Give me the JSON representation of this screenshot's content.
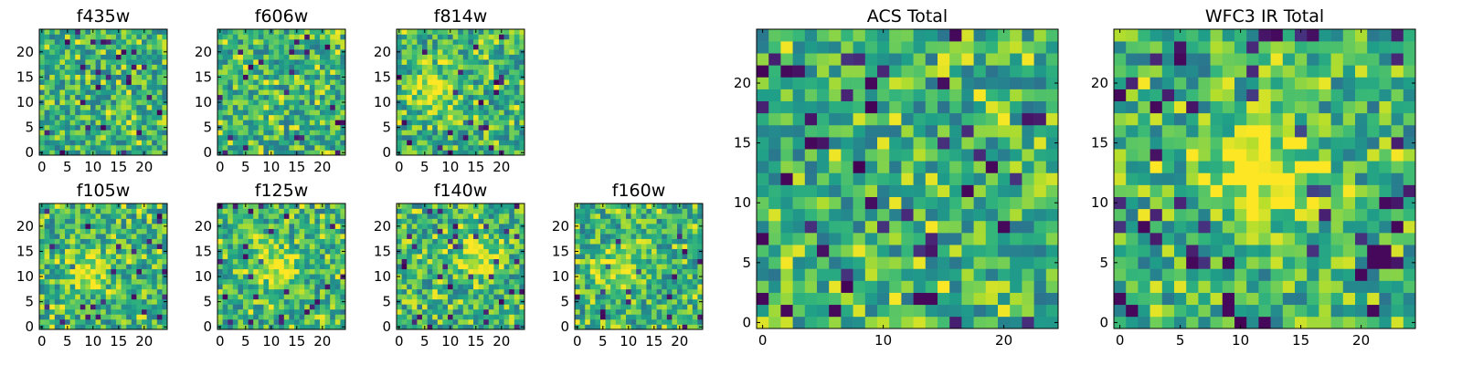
{
  "chart_data": [
    {
      "type": "heatmap",
      "title": "f435w",
      "grid_size": 25,
      "colormap": "viridis",
      "x_ticks": [
        0,
        5,
        10,
        15,
        20
      ],
      "y_ticks": [
        0,
        5,
        10,
        15,
        20
      ],
      "xlim": [
        -0.5,
        24.5
      ],
      "ylim": [
        -0.5,
        24.5
      ],
      "value_range": [
        0,
        1
      ],
      "seed": 101,
      "hotspots": []
    },
    {
      "type": "heatmap",
      "title": "f606w",
      "grid_size": 25,
      "colormap": "viridis",
      "x_ticks": [
        0,
        5,
        10,
        15,
        20
      ],
      "y_ticks": [
        0,
        5,
        10,
        15,
        20
      ],
      "xlim": [
        -0.5,
        24.5
      ],
      "ylim": [
        -0.5,
        24.5
      ],
      "value_range": [
        0,
        1
      ],
      "seed": 202,
      "hotspots": []
    },
    {
      "type": "heatmap",
      "title": "f814w",
      "grid_size": 25,
      "colormap": "viridis",
      "x_ticks": [
        0,
        5,
        10,
        15,
        20
      ],
      "y_ticks": [
        0,
        5,
        10,
        15,
        20
      ],
      "xlim": [
        -0.5,
        24.5
      ],
      "ylim": [
        -0.5,
        24.5
      ],
      "value_range": [
        0,
        1
      ],
      "seed": 303,
      "hotspots": [
        {
          "x": 7,
          "y": 12,
          "amplitude": 0.25
        }
      ]
    },
    {
      "type": "heatmap",
      "title": "f105w",
      "grid_size": 25,
      "colormap": "viridis",
      "x_ticks": [
        0,
        5,
        10,
        15,
        20
      ],
      "y_ticks": [
        0,
        5,
        10,
        15,
        20
      ],
      "xlim": [
        -0.5,
        24.5
      ],
      "ylim": [
        -0.5,
        24.5
      ],
      "value_range": [
        0,
        1
      ],
      "seed": 404,
      "hotspots": [
        {
          "x": 9,
          "y": 11,
          "amplitude": 0.35
        }
      ]
    },
    {
      "type": "heatmap",
      "title": "f125w",
      "grid_size": 25,
      "colormap": "viridis",
      "x_ticks": [
        0,
        5,
        10,
        15,
        20
      ],
      "y_ticks": [
        0,
        5,
        10,
        15,
        20
      ],
      "xlim": [
        -0.5,
        24.5
      ],
      "ylim": [
        -0.5,
        24.5
      ],
      "value_range": [
        0,
        1
      ],
      "seed": 505,
      "hotspots": [
        {
          "x": 11,
          "y": 12,
          "amplitude": 0.35
        }
      ]
    },
    {
      "type": "heatmap",
      "title": "f140w",
      "grid_size": 25,
      "colormap": "viridis",
      "x_ticks": [
        0,
        5,
        10,
        15,
        20
      ],
      "y_ticks": [
        0,
        5,
        10,
        15,
        20
      ],
      "xlim": [
        -0.5,
        24.5
      ],
      "ylim": [
        -0.5,
        24.5
      ],
      "value_range": [
        0,
        1
      ],
      "seed": 606,
      "hotspots": [
        {
          "x": 15,
          "y": 14,
          "amplitude": 0.35
        }
      ]
    },
    {
      "type": "heatmap",
      "title": "f160w",
      "grid_size": 25,
      "colormap": "viridis",
      "x_ticks": [
        0,
        5,
        10,
        15,
        20
      ],
      "y_ticks": [
        0,
        5,
        10,
        15,
        20
      ],
      "xlim": [
        -0.5,
        24.5
      ],
      "ylim": [
        -0.5,
        24.5
      ],
      "value_range": [
        0,
        1
      ],
      "seed": 707,
      "hotspots": [
        {
          "x": 8,
          "y": 11,
          "amplitude": 0.3
        }
      ]
    },
    {
      "type": "heatmap",
      "title": "ACS Total",
      "grid_size": 25,
      "colormap": "viridis",
      "x_ticks": [
        0,
        10,
        20
      ],
      "y_ticks": [
        0,
        5,
        10,
        15,
        20
      ],
      "xlim": [
        -0.5,
        24.5
      ],
      "ylim": [
        -0.5,
        24.5
      ],
      "value_range": [
        0,
        1
      ],
      "seed": 808,
      "hotspots": [],
      "dark_pixels": [
        [
          9,
          20
        ],
        [
          4,
          15
        ],
        [
          17,
          11
        ],
        [
          19,
          13
        ],
        [
          0,
          7
        ],
        [
          6,
          1
        ],
        [
          13,
          2
        ],
        [
          14,
          2
        ],
        [
          2,
          1
        ],
        [
          0,
          2
        ],
        [
          20,
          8
        ]
      ]
    },
    {
      "type": "heatmap",
      "title": "WFC3 IR Total",
      "grid_size": 25,
      "colormap": "viridis",
      "x_ticks": [
        0,
        5,
        10,
        15,
        20
      ],
      "y_ticks": [
        0,
        5,
        10,
        15,
        20
      ],
      "xlim": [
        -0.5,
        24.5
      ],
      "ylim": [
        -0.5,
        24.5
      ],
      "value_range": [
        0,
        1
      ],
      "seed": 909,
      "hotspots": [
        {
          "x": 12,
          "y": 12,
          "amplitude": 0.4
        }
      ],
      "dark_pixels": [
        [
          5,
          22
        ],
        [
          21,
          6
        ],
        [
          21,
          5
        ],
        [
          22,
          6
        ],
        [
          22,
          5
        ],
        [
          20,
          4
        ],
        [
          9,
          5
        ],
        [
          9,
          2
        ],
        [
          9,
          1
        ],
        [
          1,
          1
        ],
        [
          12,
          0
        ],
        [
          21,
          1
        ]
      ]
    }
  ]
}
